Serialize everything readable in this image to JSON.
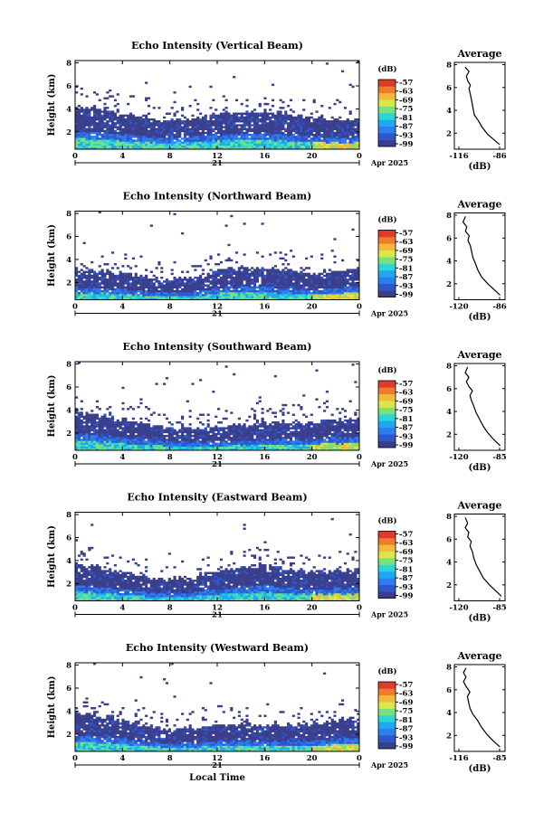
{
  "figure": {
    "x_axis_label": "Local Time",
    "date_label": "Apr 2025",
    "day_label": "21",
    "colorbar_unit": "(dB)",
    "profile_title": "Average",
    "profile_unit": "(dB)",
    "colors": {
      "colormap": [
        "#3a3f8c",
        "#2f57cc",
        "#2b7df0",
        "#1fa8f0",
        "#2bd6d6",
        "#7ae27a",
        "#d8e84a",
        "#f5b93a",
        "#f07b2c",
        "#e03a2a"
      ]
    }
  },
  "chart_data": [
    {
      "type": "heatmap",
      "title": "Echo Intensity (Vertical Beam)",
      "ylabel": "Height (km)",
      "xlabel": "",
      "x_ticks": [
        "0",
        "4",
        "8",
        "12",
        "16",
        "20",
        "0"
      ],
      "y_ticks": [
        "2",
        "4",
        "6",
        "8"
      ],
      "xlim": [
        0,
        24
      ],
      "ylim": [
        0.5,
        8.2
      ],
      "colorbar_ticks": [
        "-57",
        "-63",
        "-69",
        "-75",
        "-81",
        "-87",
        "-93",
        "-99"
      ],
      "cloud_top_km": [
        [
          0,
          4.1
        ],
        [
          2,
          4.0
        ],
        [
          4,
          3.6
        ],
        [
          6,
          3.3
        ],
        [
          8,
          3.0
        ],
        [
          10,
          3.2
        ],
        [
          12,
          3.5
        ],
        [
          14,
          3.7
        ],
        [
          16,
          3.8
        ],
        [
          18,
          3.6
        ],
        [
          20,
          3.2
        ],
        [
          22,
          3.2
        ],
        [
          24,
          3.1
        ]
      ],
      "profile": {
        "title": "Average",
        "xlabel": "(dB)",
        "x_ticks": [
          "-116",
          "-86"
        ],
        "xlim": [
          -122,
          -84
        ],
        "y_ticks": [
          "2",
          "4",
          "6",
          "8"
        ],
        "points": [
          [
            -88,
            1.0
          ],
          [
            -92,
            1.4
          ],
          [
            -97,
            1.9
          ],
          [
            -101,
            2.5
          ],
          [
            -104,
            3.1
          ],
          [
            -107,
            3.6
          ],
          [
            -108,
            4.2
          ],
          [
            -109,
            4.8
          ],
          [
            -110,
            5.4
          ],
          [
            -111,
            5.9
          ],
          [
            -110,
            6.2
          ],
          [
            -112,
            6.6
          ],
          [
            -113,
            7.0
          ],
          [
            -111,
            7.4
          ],
          [
            -114,
            7.8
          ]
        ]
      }
    },
    {
      "type": "heatmap",
      "title": "Echo Intensity (Northward Beam)",
      "ylabel": "Height (km)",
      "xlabel": "",
      "x_ticks": [
        "0",
        "4",
        "8",
        "12",
        "16",
        "20",
        "0"
      ],
      "y_ticks": [
        "2",
        "4",
        "6",
        "8"
      ],
      "xlim": [
        0,
        24
      ],
      "ylim": [
        0.5,
        8.2
      ],
      "colorbar_ticks": [
        "-57",
        "-63",
        "-69",
        "-75",
        "-81",
        "-87",
        "-93",
        "-99"
      ],
      "cloud_top_km": [
        [
          0,
          3.2
        ],
        [
          2,
          3.0
        ],
        [
          4,
          2.9
        ],
        [
          6,
          2.5
        ],
        [
          8,
          2.3
        ],
        [
          10,
          2.4
        ],
        [
          12,
          3.1
        ],
        [
          14,
          3.3
        ],
        [
          16,
          3.3
        ],
        [
          18,
          3.1
        ],
        [
          20,
          2.7
        ],
        [
          22,
          3.0
        ],
        [
          24,
          3.2
        ]
      ],
      "profile": {
        "title": "Average",
        "xlabel": "(dB)",
        "x_ticks": [
          "-120",
          "-86"
        ],
        "xlim": [
          -125,
          -84
        ],
        "y_ticks": [
          "2",
          "4",
          "6",
          "8"
        ],
        "points": [
          [
            -88,
            1.0
          ],
          [
            -93,
            1.5
          ],
          [
            -98,
            2.0
          ],
          [
            -103,
            2.6
          ],
          [
            -106,
            3.2
          ],
          [
            -108,
            3.8
          ],
          [
            -110,
            4.3
          ],
          [
            -111,
            4.8
          ],
          [
            -112,
            5.3
          ],
          [
            -114,
            5.8
          ],
          [
            -113,
            6.2
          ],
          [
            -116,
            6.6
          ],
          [
            -115,
            7.0
          ],
          [
            -118,
            7.4
          ],
          [
            -116,
            7.9
          ]
        ]
      }
    },
    {
      "type": "heatmap",
      "title": "Echo Intensity (Southward Beam)",
      "ylabel": "Height (km)",
      "xlabel": "",
      "x_ticks": [
        "0",
        "4",
        "8",
        "12",
        "16",
        "20",
        "0"
      ],
      "y_ticks": [
        "2",
        "4",
        "6",
        "8"
      ],
      "xlim": [
        0,
        24
      ],
      "ylim": [
        0.5,
        8.2
      ],
      "colorbar_ticks": [
        "-57",
        "-63",
        "-69",
        "-75",
        "-81",
        "-87",
        "-93",
        "-99"
      ],
      "cloud_top_km": [
        [
          0,
          4.0
        ],
        [
          2,
          3.6
        ],
        [
          4,
          3.3
        ],
        [
          6,
          2.8
        ],
        [
          8,
          2.4
        ],
        [
          10,
          2.4
        ],
        [
          12,
          2.6
        ],
        [
          14,
          2.7
        ],
        [
          16,
          2.8
        ],
        [
          18,
          2.9
        ],
        [
          20,
          2.9
        ],
        [
          22,
          3.2
        ],
        [
          24,
          3.3
        ]
      ],
      "profile": {
        "title": "Average",
        "xlabel": "(dB)",
        "x_ticks": [
          "-120",
          "-85"
        ],
        "xlim": [
          -125,
          -83
        ],
        "y_ticks": [
          "2",
          "4",
          "6",
          "8"
        ],
        "points": [
          [
            -87,
            1.0
          ],
          [
            -92,
            1.5
          ],
          [
            -97,
            2.1
          ],
          [
            -101,
            2.7
          ],
          [
            -104,
            3.3
          ],
          [
            -107,
            3.9
          ],
          [
            -109,
            4.5
          ],
          [
            -111,
            5.0
          ],
          [
            -112,
            5.4
          ],
          [
            -110,
            5.8
          ],
          [
            -113,
            6.2
          ],
          [
            -115,
            6.6
          ],
          [
            -113,
            7.0
          ],
          [
            -116,
            7.4
          ],
          [
            -114,
            7.9
          ]
        ]
      }
    },
    {
      "type": "heatmap",
      "title": "Echo Intensity (Eastward Beam)",
      "ylabel": "Height (km)",
      "xlabel": "",
      "x_ticks": [
        "0",
        "4",
        "8",
        "12",
        "16",
        "20",
        "0"
      ],
      "y_ticks": [
        "2",
        "4",
        "6",
        "8"
      ],
      "xlim": [
        0,
        24
      ],
      "ylim": [
        0.5,
        8.2
      ],
      "colorbar_ticks": [
        "-57",
        "-63",
        "-69",
        "-75",
        "-81",
        "-87",
        "-93",
        "-99"
      ],
      "cloud_top_km": [
        [
          0,
          3.7
        ],
        [
          2,
          3.4
        ],
        [
          4,
          3.0
        ],
        [
          6,
          2.6
        ],
        [
          8,
          2.4
        ],
        [
          10,
          2.5
        ],
        [
          12,
          3.1
        ],
        [
          14,
          3.4
        ],
        [
          16,
          3.6
        ],
        [
          18,
          3.3
        ],
        [
          20,
          3.0
        ],
        [
          22,
          3.1
        ],
        [
          24,
          3.2
        ]
      ],
      "profile": {
        "title": "Average",
        "xlabel": "(dB)",
        "x_ticks": [
          "-120",
          "-85"
        ],
        "xlim": [
          -125,
          -83
        ],
        "y_ticks": [
          "2",
          "4",
          "6",
          "8"
        ],
        "points": [
          [
            -86,
            1.0
          ],
          [
            -91,
            1.5
          ],
          [
            -96,
            2.0
          ],
          [
            -101,
            2.6
          ],
          [
            -104,
            3.2
          ],
          [
            -107,
            3.8
          ],
          [
            -109,
            4.4
          ],
          [
            -110,
            4.9
          ],
          [
            -112,
            5.4
          ],
          [
            -111,
            5.8
          ],
          [
            -114,
            6.2
          ],
          [
            -113,
            6.6
          ],
          [
            -116,
            7.0
          ],
          [
            -114,
            7.4
          ],
          [
            -116,
            7.9
          ]
        ]
      }
    },
    {
      "type": "heatmap",
      "title": "Echo Intensity (Westward Beam)",
      "ylabel": "Height (km)",
      "xlabel": "Local Time",
      "x_ticks": [
        "0",
        "4",
        "8",
        "12",
        "16",
        "20",
        "0"
      ],
      "y_ticks": [
        "2",
        "4",
        "6",
        "8"
      ],
      "xlim": [
        0,
        24
      ],
      "ylim": [
        0.5,
        8.2
      ],
      "colorbar_ticks": [
        "-57",
        "-63",
        "-69",
        "-75",
        "-81",
        "-87",
        "-93",
        "-99"
      ],
      "cloud_top_km": [
        [
          0,
          4.0
        ],
        [
          2,
          3.6
        ],
        [
          4,
          3.3
        ],
        [
          6,
          2.7
        ],
        [
          8,
          2.4
        ],
        [
          10,
          2.5
        ],
        [
          12,
          2.7
        ],
        [
          14,
          2.9
        ],
        [
          16,
          2.8
        ],
        [
          18,
          2.9
        ],
        [
          20,
          2.9
        ],
        [
          22,
          3.2
        ],
        [
          24,
          3.3
        ]
      ],
      "profile": {
        "title": "Average",
        "xlabel": "(dB)",
        "x_ticks": [
          "-116",
          "-85"
        ],
        "xlim": [
          -122,
          -83
        ],
        "y_ticks": [
          "2",
          "4",
          "6",
          "8"
        ],
        "points": [
          [
            -87,
            1.0
          ],
          [
            -92,
            1.5
          ],
          [
            -97,
            2.1
          ],
          [
            -101,
            2.7
          ],
          [
            -104,
            3.3
          ],
          [
            -108,
            3.9
          ],
          [
            -110,
            4.4
          ],
          [
            -111,
            4.9
          ],
          [
            -112,
            5.4
          ],
          [
            -110,
            5.8
          ],
          [
            -113,
            6.3
          ],
          [
            -115,
            6.7
          ],
          [
            -113,
            7.1
          ],
          [
            -115,
            7.5
          ],
          [
            -113,
            7.9
          ]
        ]
      }
    }
  ]
}
